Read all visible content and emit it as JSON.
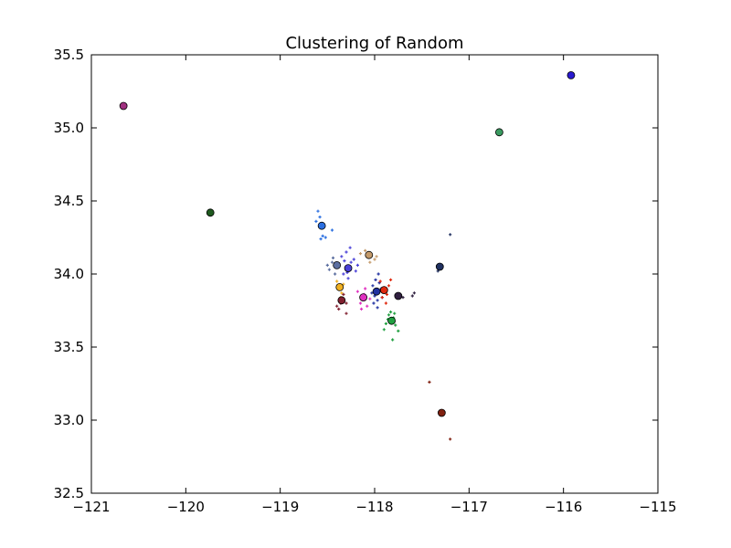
{
  "chart_data": {
    "type": "scatter",
    "title": "Clustering of Random",
    "xlabel": "",
    "ylabel": "",
    "xlim": [
      -121,
      -115
    ],
    "ylim": [
      32.5,
      35.5
    ],
    "x_ticks": [
      -121,
      -120,
      -119,
      -118,
      -117,
      -116,
      -115
    ],
    "x_tick_labels": [
      "−121",
      "−120",
      "−119",
      "−118",
      "−117",
      "−116",
      "−115"
    ],
    "y_ticks": [
      32.5,
      33.0,
      33.5,
      34.0,
      34.5,
      35.0,
      35.5
    ],
    "y_tick_labels": [
      "32.5",
      "33.0",
      "33.5",
      "34.0",
      "34.5",
      "35.0",
      "35.5"
    ],
    "grid": false,
    "legend": "none",
    "clusters": [
      {
        "color": "#2b6fe0",
        "center": [
          -118.56,
          34.33
        ],
        "points": [
          [
            -118.6,
            34.43
          ],
          [
            -118.58,
            34.39
          ],
          [
            -118.55,
            34.26
          ],
          [
            -118.52,
            34.25
          ],
          [
            -118.57,
            34.24
          ],
          [
            -118.45,
            34.3
          ],
          [
            -118.62,
            34.36
          ]
        ]
      },
      {
        "color": "#4a40d8",
        "center": [
          -118.28,
          34.04
        ],
        "points": [
          [
            -118.35,
            34.12
          ],
          [
            -118.3,
            34.15
          ],
          [
            -118.25,
            34.08
          ],
          [
            -118.2,
            34.02
          ],
          [
            -118.33,
            34.0
          ],
          [
            -118.28,
            33.97
          ],
          [
            -118.22,
            34.1
          ],
          [
            -118.38,
            34.05
          ],
          [
            -118.26,
            34.18
          ],
          [
            -118.32,
            34.09
          ],
          [
            -118.18,
            34.06
          ],
          [
            -118.29,
            34.01
          ]
        ]
      },
      {
        "color": "#5c6fa0",
        "center": [
          -118.4,
          34.06
        ],
        "points": [
          [
            -118.48,
            34.03
          ],
          [
            -118.45,
            34.08
          ],
          [
            -118.42,
            34.0
          ],
          [
            -118.5,
            34.06
          ],
          [
            -118.44,
            34.11
          ]
        ]
      },
      {
        "color": "#c49a6a",
        "center": [
          -118.06,
          34.13
        ],
        "points": [
          [
            -118.15,
            34.14
          ],
          [
            -118.1,
            34.16
          ],
          [
            -118.0,
            34.1
          ],
          [
            -118.05,
            34.08
          ],
          [
            -117.98,
            34.12
          ]
        ]
      },
      {
        "color": "#f0b020",
        "center": [
          -118.37,
          33.91
        ],
        "points": [
          [
            -118.4,
            33.95
          ],
          [
            -118.35,
            33.87
          ],
          [
            -118.38,
            33.92
          ],
          [
            -118.33,
            33.93
          ],
          [
            -118.36,
            33.84
          ]
        ]
      },
      {
        "color": "#802030",
        "center": [
          -118.35,
          33.82
        ],
        "points": [
          [
            -118.4,
            33.78
          ],
          [
            -118.3,
            33.8
          ],
          [
            -118.33,
            33.86
          ],
          [
            -118.38,
            33.76
          ],
          [
            -118.3,
            33.73
          ],
          [
            -118.36,
            33.8
          ]
        ]
      },
      {
        "color": "#e030c0",
        "center": [
          -118.12,
          33.84
        ],
        "points": [
          [
            -118.18,
            33.88
          ],
          [
            -118.15,
            33.8
          ],
          [
            -118.1,
            33.9
          ],
          [
            -118.08,
            33.78
          ],
          [
            -118.14,
            33.76
          ],
          [
            -118.11,
            33.86
          ],
          [
            -118.05,
            33.83
          ]
        ]
      },
      {
        "color": "#2030a0",
        "center": [
          -117.98,
          33.88
        ],
        "points": [
          [
            -118.02,
            33.92
          ],
          [
            -117.97,
            33.82
          ],
          [
            -117.95,
            33.94
          ],
          [
            -118.0,
            33.85
          ],
          [
            -117.93,
            33.9
          ],
          [
            -117.99,
            33.96
          ],
          [
            -117.96,
            34.0
          ],
          [
            -118.03,
            33.87
          ],
          [
            -117.92,
            33.84
          ],
          [
            -117.97,
            33.77
          ],
          [
            -118.01,
            33.8
          ]
        ]
      },
      {
        "color": "#e02a10",
        "center": [
          -117.9,
          33.89
        ],
        "points": [
          [
            -117.85,
            33.92
          ],
          [
            -117.92,
            33.84
          ],
          [
            -117.88,
            33.8
          ],
          [
            -117.83,
            33.96
          ],
          [
            -117.87,
            33.86
          ],
          [
            -117.94,
            33.95
          ]
        ]
      },
      {
        "color": "#203060",
        "center": [
          -117.31,
          34.05
        ],
        "points": [
          [
            -117.2,
            34.27
          ],
          [
            -117.33,
            34.02
          ],
          [
            -117.3,
            34.06
          ]
        ]
      },
      {
        "color": "#302040",
        "center": [
          -117.75,
          33.85
        ],
        "points": [
          [
            -117.58,
            33.87
          ],
          [
            -117.6,
            33.85
          ],
          [
            -117.7,
            33.84
          ]
        ]
      },
      {
        "color": "#20a040",
        "center": [
          -117.82,
          33.68
        ],
        "points": [
          [
            -117.9,
            33.62
          ],
          [
            -117.8,
            33.7
          ],
          [
            -117.85,
            33.72
          ],
          [
            -117.78,
            33.65
          ],
          [
            -117.75,
            33.61
          ],
          [
            -117.88,
            33.66
          ],
          [
            -117.81,
            33.55
          ],
          [
            -117.83,
            33.74
          ],
          [
            -117.79,
            33.73
          ],
          [
            -117.86,
            33.69
          ]
        ]
      },
      {
        "color": "#802010",
        "center": [
          -117.29,
          33.05
        ],
        "points": [
          [
            -117.42,
            33.26
          ],
          [
            -117.2,
            32.87
          ]
        ]
      },
      {
        "color": "#a03080",
        "center": [
          -120.66,
          35.15
        ],
        "points": []
      },
      {
        "color": "#1f5a1f",
        "center": [
          -119.74,
          34.42
        ],
        "points": []
      },
      {
        "color": "#3a9a60",
        "center": [
          -116.68,
          34.97
        ],
        "points": []
      },
      {
        "color": "#2a1ad0",
        "center": [
          -115.92,
          35.36
        ],
        "points": []
      }
    ]
  }
}
